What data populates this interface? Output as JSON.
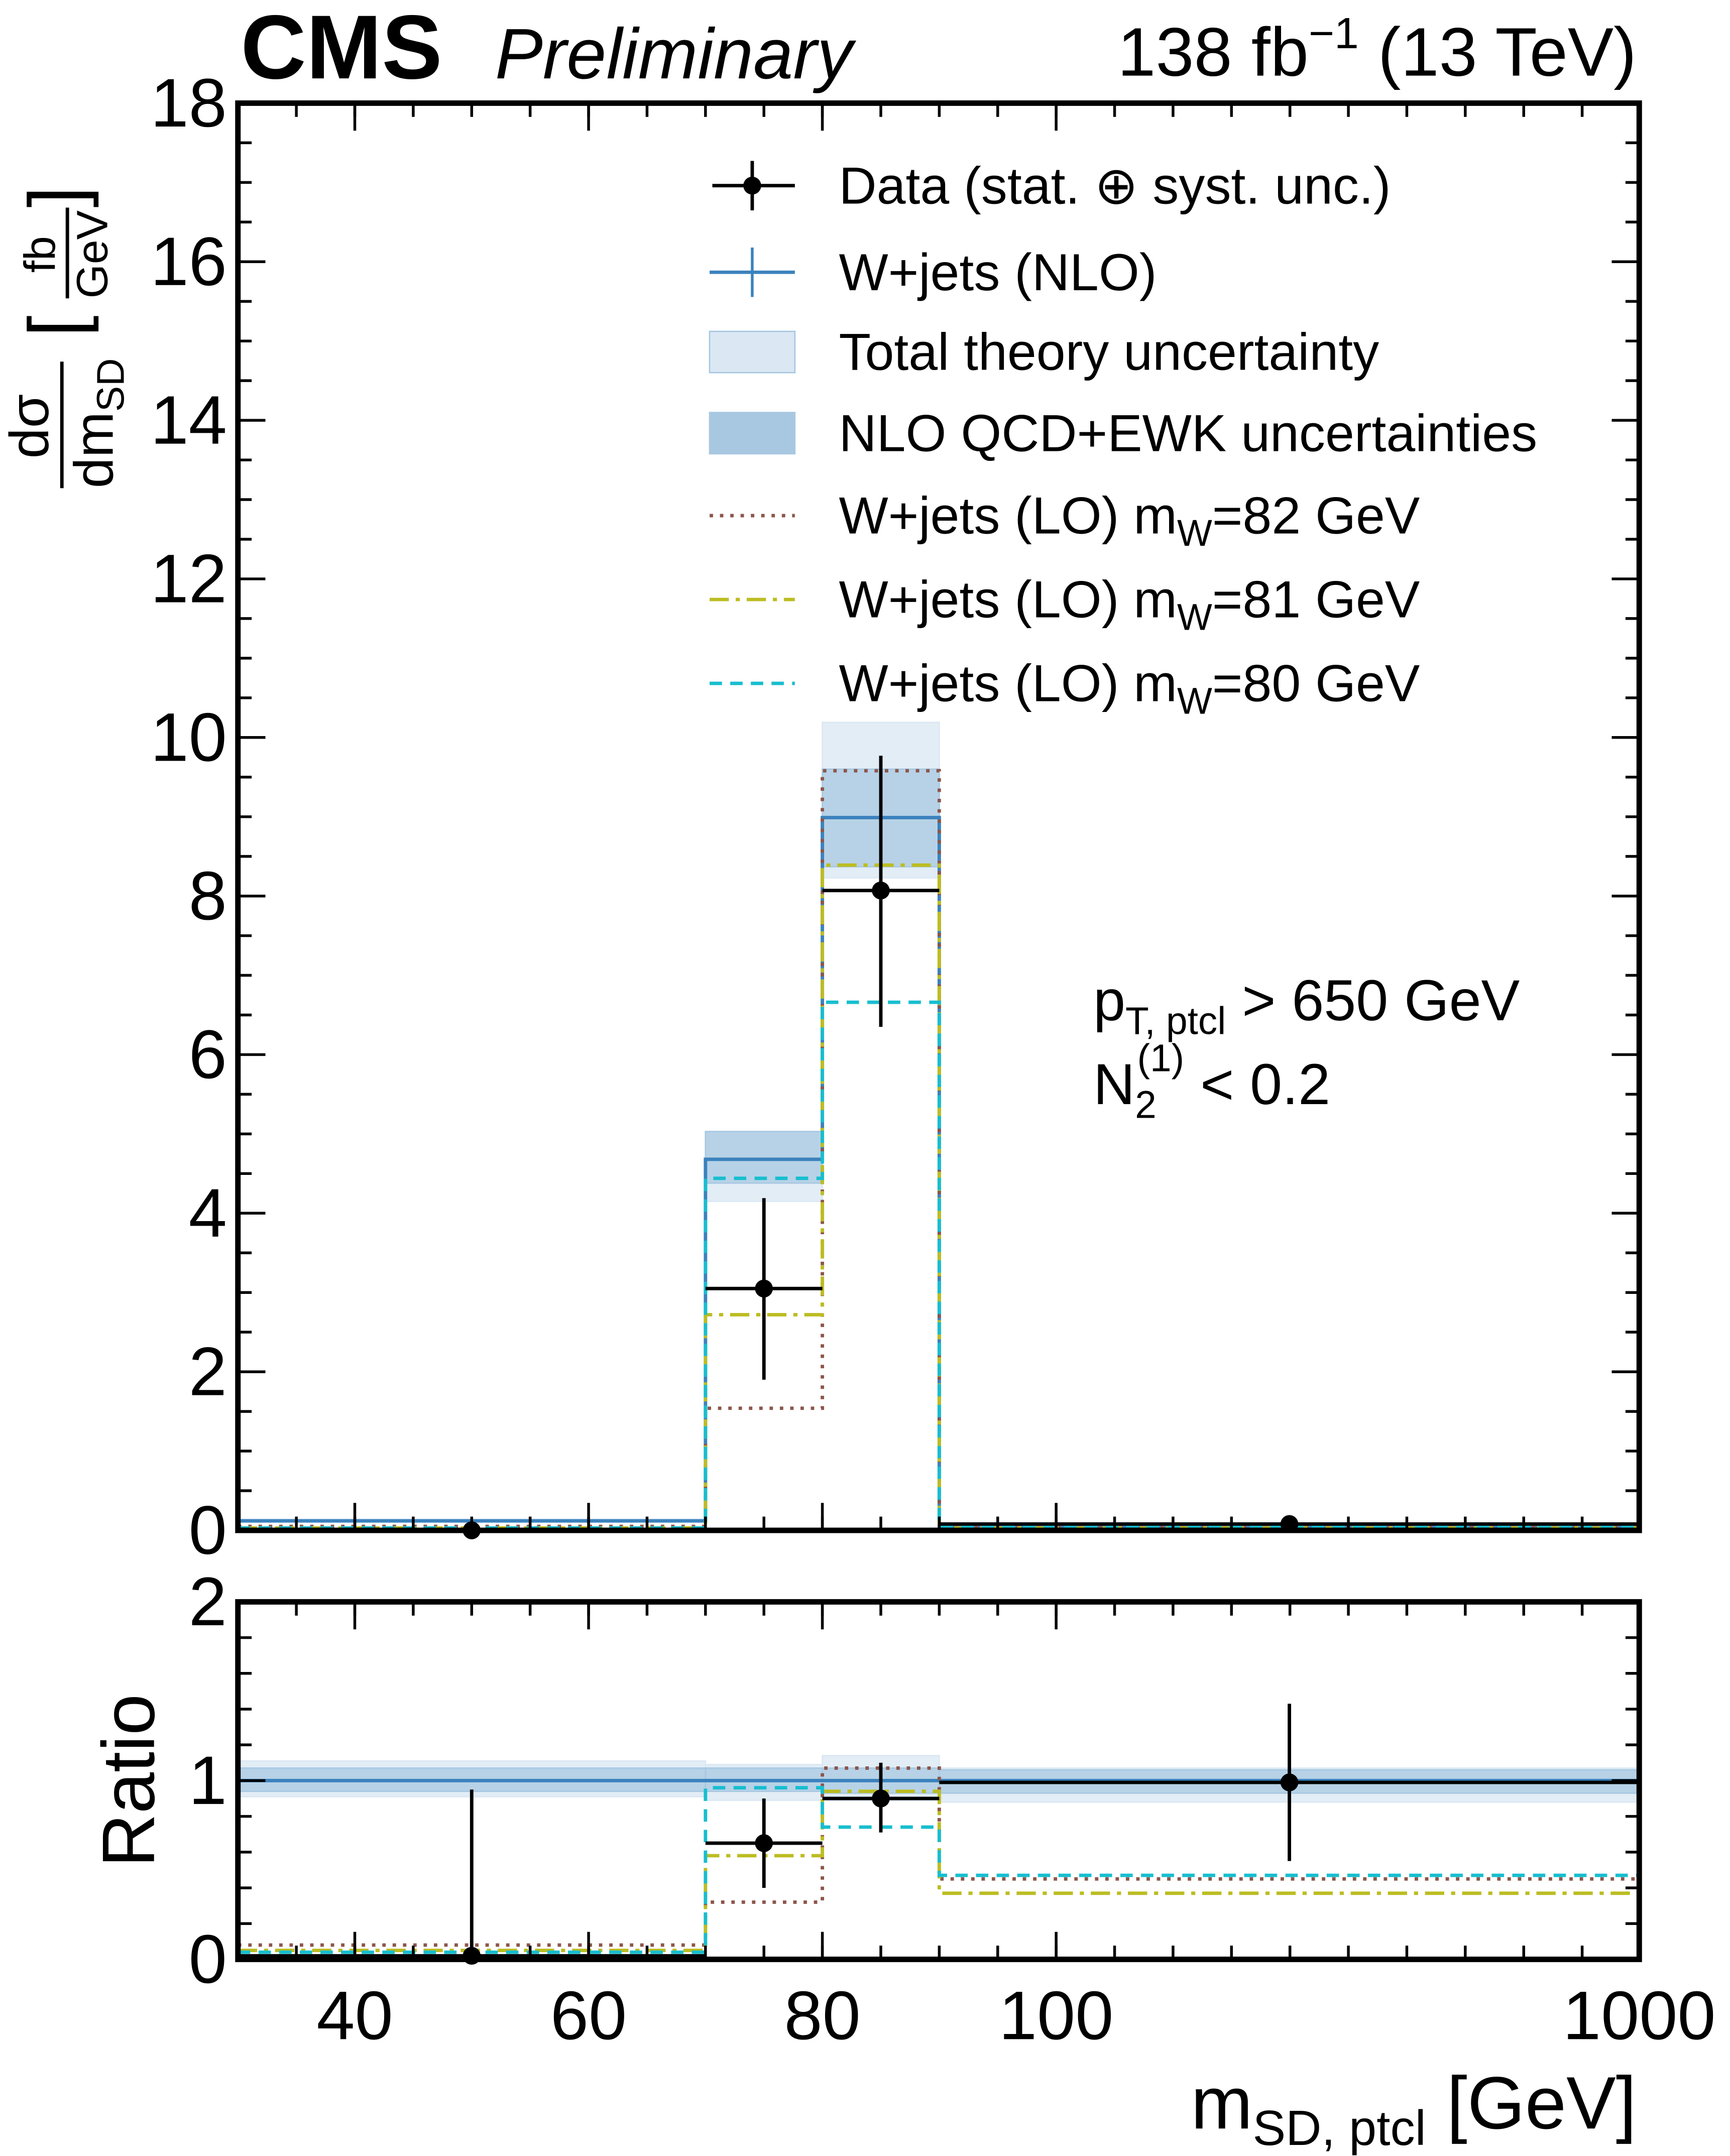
{
  "header": {
    "experiment": "CMS",
    "status": "Preliminary",
    "lumi_prefix": "138 fb",
    "lumi_exp": "−1",
    "lumi_suffix": " (13 TeV)"
  },
  "annotations": {
    "pt_main": "p",
    "pt_sub": "T, ptcl",
    "pt_cut": " > 650 GeV",
    "n2_main": "N",
    "n2_sub": "2",
    "n2_sup": "(1)",
    "n2_cut": " < 0.2"
  },
  "legend": [
    {
      "key": "data",
      "label": "Data (stat. ⊕ syst. unc.)"
    },
    {
      "key": "nlo",
      "label": "W+jets (NLO)"
    },
    {
      "key": "total_unc",
      "label": "Total theory uncertainty"
    },
    {
      "key": "nlo_unc",
      "label": "NLO QCD+EWK uncertainties"
    },
    {
      "key": "lo82",
      "label": "W+jets (LO) m",
      "sub": "W",
      "suffix": "=82 GeV"
    },
    {
      "key": "lo81",
      "label": "W+jets (LO) m",
      "sub": "W",
      "suffix": "=81 GeV"
    },
    {
      "key": "lo80",
      "label": "W+jets (LO) m",
      "sub": "W",
      "suffix": "=80 GeV"
    }
  ],
  "colors": {
    "data": "#000000",
    "nlo": "#3b82bd",
    "nlo_unc": "#a8c8e2",
    "total_unc": "#dbe8f4",
    "lo82": "#8c564b",
    "lo81": "#bcbd22",
    "lo80": "#17becf"
  },
  "chart_data": [
    {
      "type": "bar",
      "panel": "main",
      "title": "CMS Preliminary 138 fb-1 (13 TeV)",
      "ylabel": {
        "num": "dσ",
        "den": "dm",
        "den_sub": "SD",
        "unit_num": "fb",
        "unit_den": "GeV"
      },
      "ylim": [
        0,
        18
      ],
      "yticks": [
        "0",
        "2",
        "4",
        "6",
        "8",
        "10",
        "12",
        "14",
        "16",
        "18"
      ],
      "bin_edges": [
        30,
        70,
        80,
        90,
        1000
      ],
      "data": {
        "x": [
          50,
          75,
          85,
          460
        ],
        "y": [
          0.0,
          3.05,
          8.07,
          0.08
        ],
        "err_up": [
          0.0,
          1.14,
          1.7,
          0.03
        ],
        "err_down": [
          0.0,
          1.15,
          1.72,
          0.03
        ]
      },
      "series": [
        {
          "name": "W+jets (NLO)",
          "key": "nlo",
          "values": [
            0.12,
            4.68,
            8.99,
            0.05
          ]
        },
        {
          "name": "W+jets (LO) mW=82 GeV",
          "key": "lo82",
          "values": [
            0.05,
            1.54,
            9.58,
            0.05
          ]
        },
        {
          "name": "W+jets (LO) mW=81 GeV",
          "key": "lo81",
          "values": [
            0.03,
            2.72,
            8.39,
            0.03
          ]
        },
        {
          "name": "W+jets (LO) mW=80 GeV",
          "key": "lo80",
          "values": [
            0.03,
            4.44,
            6.66,
            0.04
          ]
        }
      ],
      "bands": [
        {
          "name": "Total theory uncertainty",
          "key": "total_unc",
          "low": [
            0.1,
            4.15,
            8.23,
            0.04
          ],
          "high": [
            0.14,
            5.03,
            10.19,
            0.06
          ]
        },
        {
          "name": "NLO QCD+EWK uncertainties",
          "key": "nlo_unc",
          "low": [
            0.11,
            4.38,
            8.37,
            0.045
          ],
          "high": [
            0.13,
            5.03,
            9.6,
            0.055
          ]
        }
      ]
    },
    {
      "type": "bar",
      "panel": "ratio",
      "ylabel": "Ratio",
      "ylim": [
        0,
        2
      ],
      "yticks": [
        "0",
        "1",
        "2"
      ],
      "xlabel": {
        "main": "m",
        "sub": "SD, ptcl",
        "unit": " [GeV]"
      },
      "xticks": [
        {
          "v": 40,
          "label": "40"
        },
        {
          "v": 60,
          "label": "60"
        },
        {
          "v": 80,
          "label": "80"
        },
        {
          "v": 100,
          "label": "100"
        },
        {
          "v": 1000,
          "label": "1000"
        }
      ],
      "bin_edges": [
        30,
        70,
        80,
        90,
        1000
      ],
      "data": {
        "x": [
          50,
          75,
          85,
          460
        ],
        "y": [
          0.02,
          0.65,
          0.9,
          0.99
        ],
        "err_up": [
          0.93,
          0.25,
          0.2,
          0.44
        ],
        "err_down": [
          0.02,
          0.25,
          0.19,
          0.44
        ]
      },
      "series": [
        {
          "name": "W+jets (NLO)",
          "key": "nlo",
          "values": [
            1.0,
            1.0,
            1.0,
            1.0
          ]
        },
        {
          "name": "W+jets (LO) mW=82 GeV",
          "key": "lo82",
          "values": [
            0.08,
            0.32,
            1.07,
            0.45
          ]
        },
        {
          "name": "W+jets (LO) mW=81 GeV",
          "key": "lo81",
          "values": [
            0.05,
            0.58,
            0.94,
            0.37
          ]
        },
        {
          "name": "W+jets (LO) mW=80 GeV",
          "key": "lo80",
          "values": [
            0.04,
            0.96,
            0.74,
            0.47
          ]
        }
      ],
      "bands": [
        {
          "name": "Total theory uncertainty",
          "key": "total_unc",
          "low": [
            0.91,
            0.89,
            0.89,
            0.88
          ],
          "high": [
            1.11,
            1.09,
            1.14,
            1.07
          ]
        },
        {
          "name": "NLO QCD+EWK uncertainties",
          "key": "nlo_unc",
          "low": [
            0.94,
            0.94,
            0.93,
            0.93
          ],
          "high": [
            1.07,
            1.07,
            1.07,
            1.06
          ]
        }
      ]
    }
  ]
}
